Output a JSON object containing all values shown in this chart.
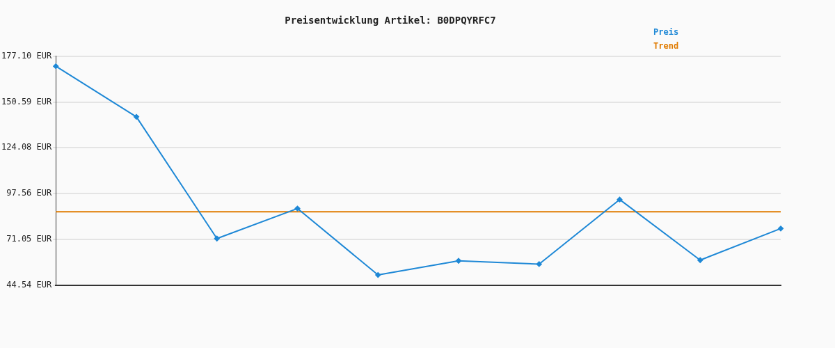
{
  "chart_data": {
    "type": "line",
    "title": "Preisentwicklung Artikel: B0DPQYRFC7",
    "categories": [
      null,
      null,
      null,
      null,
      null,
      null,
      null,
      null,
      null,
      null
    ],
    "series": [
      {
        "name": "Preis",
        "color": "#1e88d6",
        "values": [
          171.3,
          142.0,
          71.5,
          88.9,
          50.4,
          58.6,
          56.7,
          94.1,
          59.0,
          77.3
        ]
      },
      {
        "name": "Trend",
        "color": "#e07b00",
        "marker": "none",
        "values": [
          87.0,
          87.0,
          87.0,
          87.0,
          87.0,
          87.0,
          87.0,
          87.0,
          87.0,
          87.0
        ]
      }
    ],
    "ylim": [
      44.54,
      177.1
    ],
    "yticks": [
      {
        "value": 44.54,
        "label": "44.54 EUR"
      },
      {
        "value": 71.05,
        "label": "71.05 EUR"
      },
      {
        "value": 97.56,
        "label": "97.56 EUR"
      },
      {
        "value": 124.08,
        "label": "124.08 EUR"
      },
      {
        "value": 150.59,
        "label": "150.59 EUR"
      },
      {
        "value": 177.1,
        "label": "177.10 EUR"
      }
    ],
    "grid": "y",
    "legend": "top right",
    "marker": "diamond",
    "line_style": "solid"
  }
}
